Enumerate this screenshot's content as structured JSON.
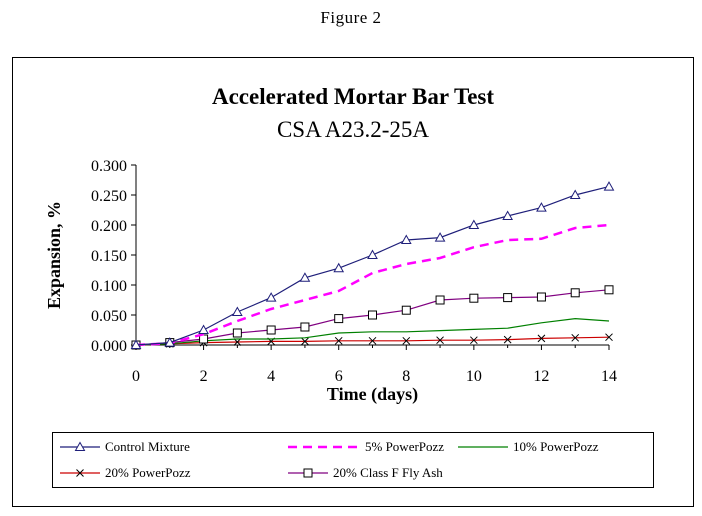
{
  "figure_label": "Figure 2",
  "chart_data": {
    "type": "line",
    "title": "Accelerated Mortar Bar Test",
    "subtitle": "CSA A23.2-25A",
    "xlabel": "Time (days)",
    "ylabel": "Expansion, %",
    "xlim": [
      0,
      14
    ],
    "ylim": [
      0,
      0.3
    ],
    "x_ticks": [
      "0",
      "2",
      "4",
      "6",
      "8",
      "10",
      "12",
      "14"
    ],
    "y_ticks": [
      "0.000",
      "0.050",
      "0.100",
      "0.150",
      "0.200",
      "0.250",
      "0.300"
    ],
    "grid": false,
    "legend_position": "bottom",
    "x": [
      0,
      1,
      2,
      3,
      4,
      5,
      6,
      7,
      8,
      9,
      10,
      11,
      12,
      13,
      14
    ],
    "series": [
      {
        "name": "Control Mixture",
        "color": "#1f1f7a",
        "style": "solid",
        "marker": "triangle",
        "values": [
          0.0,
          0.004,
          0.025,
          0.055,
          0.079,
          0.112,
          0.128,
          0.15,
          0.175,
          0.179,
          0.2,
          0.215,
          0.229,
          0.25,
          0.264
        ]
      },
      {
        "name": "5% PowerPozz",
        "color": "#ff00ff",
        "style": "dashed",
        "marker": "none",
        "values": [
          0.0,
          0.003,
          0.018,
          0.04,
          0.06,
          0.075,
          0.09,
          0.12,
          0.135,
          0.145,
          0.163,
          0.175,
          0.177,
          0.195,
          0.2
        ]
      },
      {
        "name": "10% PowerPozz",
        "color": "#008000",
        "style": "solid",
        "marker": "none",
        "values": [
          0.0,
          0.002,
          0.007,
          0.01,
          0.01,
          0.012,
          0.02,
          0.022,
          0.022,
          0.024,
          0.026,
          0.028,
          0.037,
          0.044,
          0.04
        ]
      },
      {
        "name": "20% PowerPozz",
        "color": "#cc0000",
        "style": "solid",
        "marker": "x",
        "values": [
          0.0,
          0.002,
          0.004,
          0.005,
          0.006,
          0.006,
          0.007,
          0.007,
          0.007,
          0.008,
          0.008,
          0.009,
          0.011,
          0.012,
          0.013
        ]
      },
      {
        "name": "20% Class F Fly Ash",
        "color": "#800080",
        "style": "solid",
        "marker": "square",
        "values": [
          0.0,
          0.004,
          0.01,
          0.02,
          0.025,
          0.03,
          0.044,
          0.05,
          0.058,
          0.075,
          0.078,
          0.079,
          0.08,
          0.087,
          0.092
        ]
      }
    ]
  }
}
